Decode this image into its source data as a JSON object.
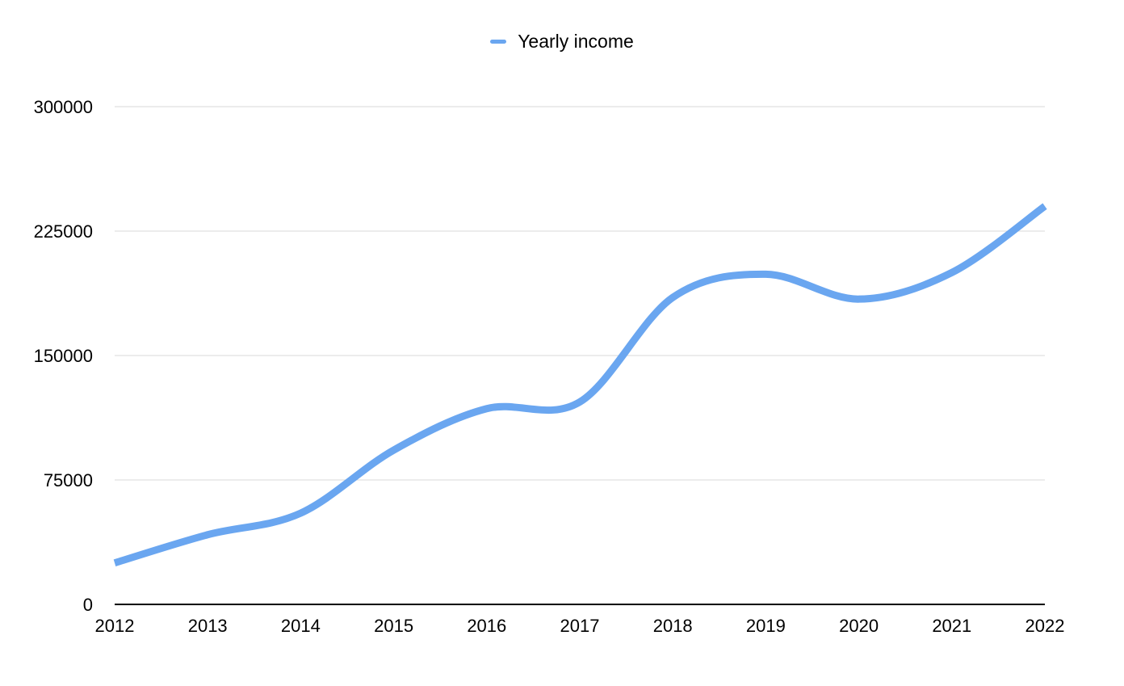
{
  "chart_data": {
    "type": "line",
    "title": "",
    "xlabel": "",
    "ylabel": "",
    "x": [
      "2012",
      "2013",
      "2014",
      "2015",
      "2016",
      "2017",
      "2018",
      "2019",
      "2020",
      "2021",
      "2022"
    ],
    "series": [
      {
        "name": "Yearly income",
        "color": "#6aa6f0",
        "values": [
          25000,
          42000,
          55000,
          93000,
          118000,
          122000,
          185000,
          199000,
          184000,
          200000,
          240000
        ]
      }
    ],
    "ylim": [
      0,
      300000
    ],
    "yticks": [
      0,
      75000,
      150000,
      225000,
      300000
    ],
    "ytick_labels": [
      "0",
      "75000",
      "150000",
      "225000",
      "300000"
    ],
    "grid": true,
    "smooth": true,
    "legend": {
      "placement": "top-center",
      "entries": [
        "Yearly income"
      ]
    }
  }
}
